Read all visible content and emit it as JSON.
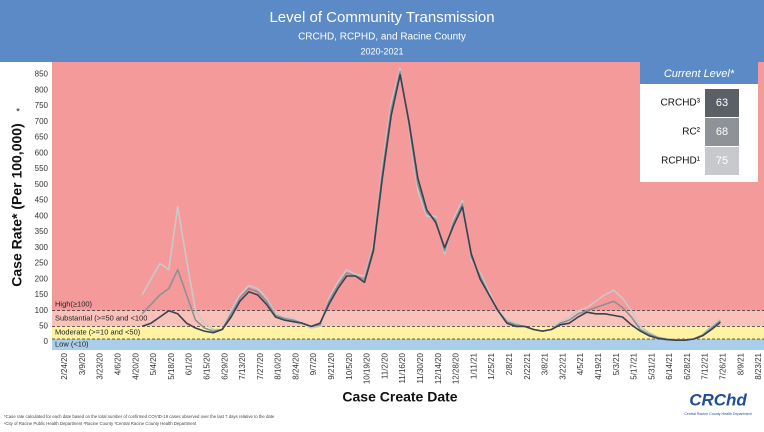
{
  "chart_data": {
    "type": "line",
    "title": "Level of Community Transmission",
    "subtitle": "CRCHD, RCPHD, and Racine County",
    "period": "2020-2021",
    "y_label": "Case Rate* (Per 100,000)",
    "y_label_note": "*",
    "x_label": "Case Create Date",
    "categories": [
      "2/24/20",
      null,
      "3/9/20",
      null,
      "3/23/20",
      null,
      "4/6/20",
      null,
      "4/20/20",
      null,
      "5/4/20",
      null,
      "5/18/20",
      null,
      "6/1/20",
      null,
      "6/15/20",
      null,
      "6/29/20",
      null,
      "7/13/20",
      null,
      "7/27/20",
      null,
      "8/10/20",
      null,
      "8/24/20",
      null,
      "9/7/20",
      null,
      "9/21/20",
      null,
      "10/5/20",
      null,
      "10/19/20",
      null,
      "11/2/20",
      null,
      "11/16/20",
      null,
      "11/30/20",
      null,
      "12/14/20",
      null,
      "12/28/20",
      null,
      "1/11/21",
      null,
      "1/25/21",
      null,
      "2/8/21",
      null,
      "2/22/21",
      null,
      "3/8/21",
      null,
      "3/22/21",
      null,
      "4/5/21",
      null,
      "4/19/21",
      null,
      "5/3/21",
      null,
      "5/17/21",
      null,
      "5/31/21",
      null,
      "6/14/21",
      null,
      "6/28/21",
      null,
      "7/12/21",
      null,
      "7/26/21",
      null,
      "8/9/21",
      null,
      "8/23/21"
    ],
    "series": [
      {
        "color": "#c9c9c9",
        "values": [
          null,
          null,
          null,
          null,
          null,
          null,
          null,
          null,
          null,
          150,
          200,
          250,
          230,
          430,
          260,
          100,
          60,
          40,
          40,
          100,
          150,
          180,
          170,
          140,
          90,
          80,
          75,
          60,
          45,
          50,
          140,
          190,
          230,
          215,
          210,
          310,
          560,
          760,
          870,
          680,
          480,
          400,
          400,
          280,
          390,
          450,
          260,
          220,
          160,
          100,
          70,
          60,
          50,
          40,
          35,
          40,
          65,
          80,
          100,
          110,
          130,
          150,
          165,
          140,
          100,
          50,
          30,
          16,
          10,
          8,
          7,
          10,
          24,
          50,
          75,
          null,
          null,
          null,
          null
        ]
      },
      {
        "color": "#8d9095",
        "values": [
          null,
          null,
          null,
          null,
          null,
          null,
          null,
          null,
          null,
          90,
          120,
          150,
          170,
          230,
          150,
          70,
          45,
          35,
          40,
          90,
          140,
          170,
          160,
          130,
          85,
          75,
          70,
          60,
          50,
          55,
          130,
          180,
          220,
          210,
          200,
          300,
          540,
          740,
          860,
          690,
          500,
          410,
          390,
          290,
          380,
          440,
          270,
          210,
          150,
          100,
          65,
          55,
          50,
          40,
          35,
          40,
          60,
          70,
          90,
          100,
          110,
          120,
          130,
          110,
          80,
          40,
          25,
          14,
          9,
          7,
          6,
          10,
          22,
          45,
          68,
          null,
          null,
          null,
          null
        ]
      },
      {
        "color": "#3a4250",
        "values": [
          null,
          null,
          null,
          null,
          null,
          null,
          null,
          null,
          null,
          50,
          60,
          80,
          100,
          90,
          60,
          45,
          35,
          30,
          40,
          80,
          130,
          160,
          150,
          120,
          80,
          70,
          65,
          60,
          50,
          60,
          120,
          170,
          210,
          210,
          190,
          290,
          520,
          720,
          850,
          700,
          520,
          420,
          380,
          300,
          370,
          430,
          280,
          200,
          150,
          100,
          60,
          50,
          50,
          40,
          35,
          40,
          55,
          60,
          80,
          95,
          90,
          90,
          85,
          80,
          55,
          35,
          20,
          12,
          8,
          6,
          6,
          10,
          20,
          40,
          63,
          null,
          null,
          null,
          null
        ]
      }
    ],
    "ylim": [
      -25,
      890
    ],
    "yticks": [
      0,
      50,
      100,
      150,
      200,
      250,
      300,
      350,
      400,
      450,
      500,
      550,
      600,
      650,
      700,
      750,
      800,
      850
    ],
    "bands": [
      {
        "label": "Low (<10)",
        "color": "#a9cdea"
      },
      {
        "label": "Moderate (>=10 and <50)",
        "from": 10,
        "color": "#fff3a3"
      },
      {
        "label": "Substantial (>=50 and <100",
        "from": 50,
        "color": "#f8c2ba"
      },
      {
        "label": "High(≥100)",
        "from": 100,
        "color": "#f59a9a"
      }
    ],
    "current_level": {
      "title": "Current Level*",
      "rows": [
        {
          "name": "CRCHD³",
          "value": 63,
          "color": "#5b5f66"
        },
        {
          "name": "RC²",
          "value": 68,
          "color": "#8f9398"
        },
        {
          "name": "RCPHD¹",
          "value": 75,
          "color": "#c7c9cc"
        }
      ]
    },
    "footnotes": [
      "*Case rate calculated for each date based on the total number of confirmed COVID-19 cases observed over the last 7 days relative to the date",
      "¹City of Racine Public Health Department   ²Racine County   ³Central Racine County Health Department"
    ],
    "logo": {
      "mark": "CRChd",
      "caption": "Central Racine County Health Department"
    }
  }
}
